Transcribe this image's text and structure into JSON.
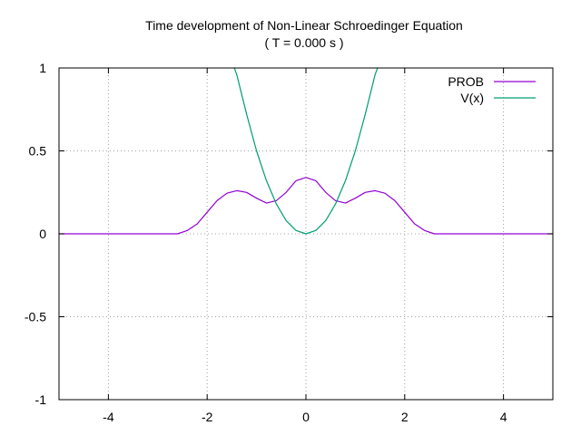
{
  "chart_data": {
    "type": "line",
    "title": "Time development of Non-Linear Schroedinger Equation",
    "subtitle": "( T = 0.000 s )",
    "xlabel": "",
    "ylabel": "",
    "xlim": [
      -5,
      5
    ],
    "ylim": [
      -1,
      1
    ],
    "x_ticks": [
      -4,
      -2,
      0,
      2,
      4
    ],
    "x_tick_labels": [
      "-4",
      "-2",
      "0",
      "2",
      "4"
    ],
    "y_ticks": [
      -1,
      -0.5,
      0,
      0.5,
      1
    ],
    "y_tick_labels": [
      "-1",
      "-0.5",
      "0",
      "0.5",
      "1"
    ],
    "grid": true,
    "legend_position": "top-right",
    "series": [
      {
        "name": "PROB",
        "color": "#9400d3",
        "x": [
          -5,
          -4,
          -3,
          -2.6,
          -2.4,
          -2.2,
          -2.0,
          -1.8,
          -1.6,
          -1.4,
          -1.2,
          -1.0,
          -0.8,
          -0.6,
          -0.4,
          -0.2,
          0,
          0.2,
          0.4,
          0.6,
          0.8,
          1.0,
          1.2,
          1.4,
          1.6,
          1.8,
          2.0,
          2.2,
          2.4,
          2.6,
          3,
          4,
          5
        ],
        "y": [
          0,
          0,
          0,
          0.0,
          0.02,
          0.06,
          0.13,
          0.2,
          0.245,
          0.26,
          0.25,
          0.215,
          0.185,
          0.2,
          0.25,
          0.32,
          0.34,
          0.32,
          0.25,
          0.2,
          0.185,
          0.215,
          0.25,
          0.26,
          0.245,
          0.2,
          0.13,
          0.06,
          0.02,
          0.0,
          0,
          0,
          0
        ]
      },
      {
        "name": "V(x)",
        "color": "#009e73",
        "x": [
          -1.45,
          -1.4,
          -1.2,
          -1.0,
          -0.8,
          -0.6,
          -0.4,
          -0.2,
          0,
          0.2,
          0.4,
          0.6,
          0.8,
          1.0,
          1.2,
          1.4,
          1.45
        ],
        "y": [
          1.0,
          0.96,
          0.72,
          0.5,
          0.32,
          0.18,
          0.08,
          0.02,
          0,
          0.02,
          0.08,
          0.18,
          0.32,
          0.5,
          0.72,
          0.96,
          1.0
        ]
      }
    ]
  }
}
